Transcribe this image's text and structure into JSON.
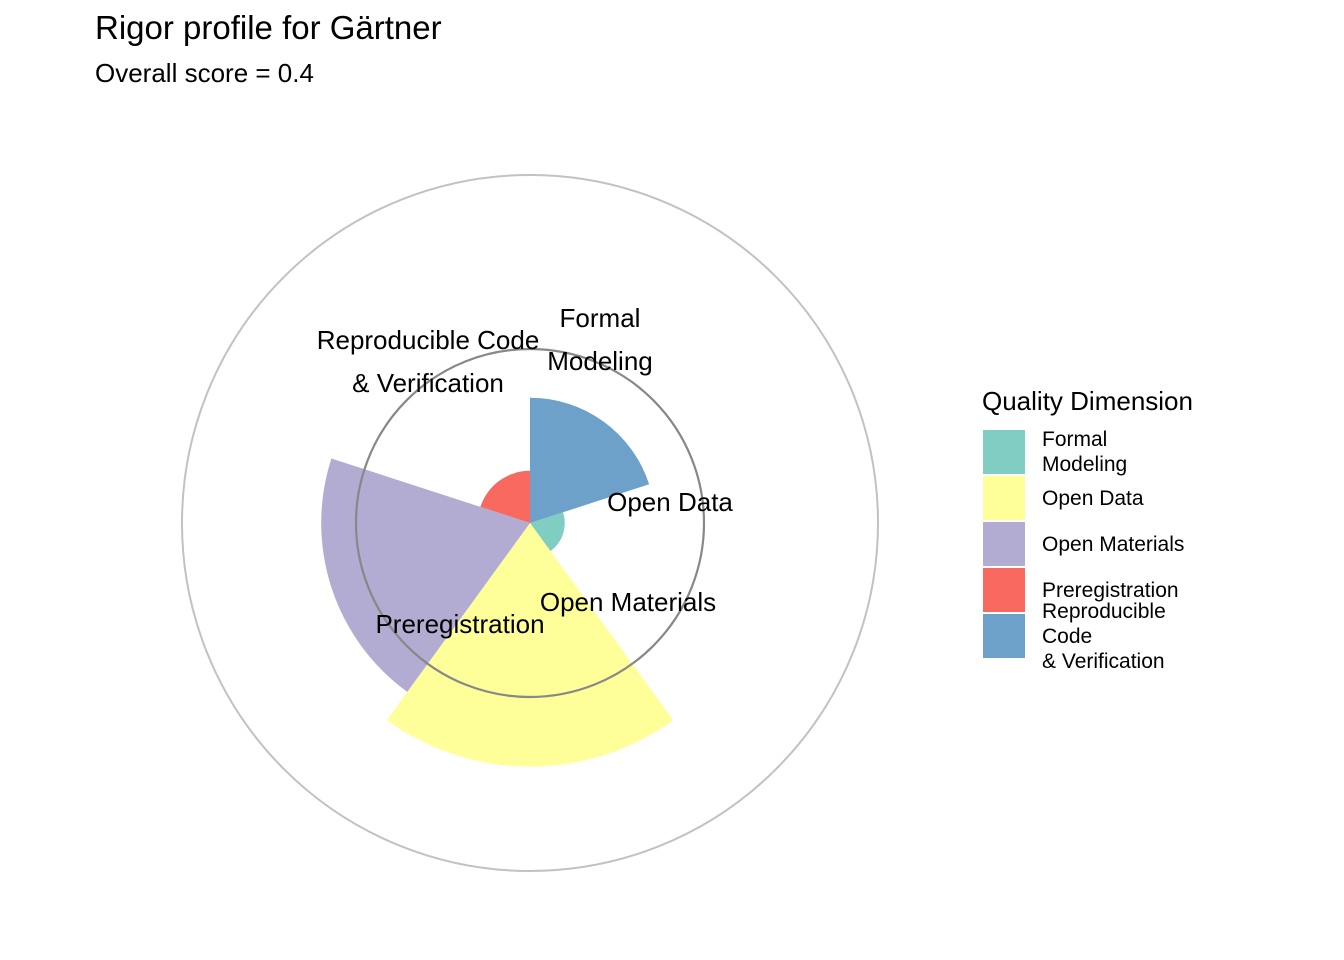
{
  "title": "Rigor profile for Gärtner",
  "subtitle": "Overall score = 0.4",
  "legend": {
    "title": "Quality Dimension"
  },
  "chart_data": {
    "type": "polar-bar",
    "title": "Rigor profile for Gärtner",
    "subtitle": "Overall score = 0.4",
    "rlim": [
      0,
      1
    ],
    "reference_circles": [
      0.5,
      1.0
    ],
    "grid": false,
    "legend_position": "right",
    "categories": [
      {
        "name": "Formal\nModeling",
        "label": "Formal\nModeling",
        "value": 0.1,
        "color": "#80CDC1"
      },
      {
        "name": "Open Data",
        "label": "Open Data",
        "value": 0.7,
        "color": "#FFFF99"
      },
      {
        "name": "Open Materials",
        "label": "Open Materials",
        "value": 0.6,
        "color": "#B2ABD2"
      },
      {
        "name": "Preregistration",
        "label": "Preregistration",
        "value": 0.15,
        "color": "#F8695F"
      },
      {
        "name": "Reproducible Code\n& Verification",
        "label": "Reproducible Code\n& Verification",
        "value": 0.36,
        "color": "#6DA1C9"
      }
    ]
  }
}
